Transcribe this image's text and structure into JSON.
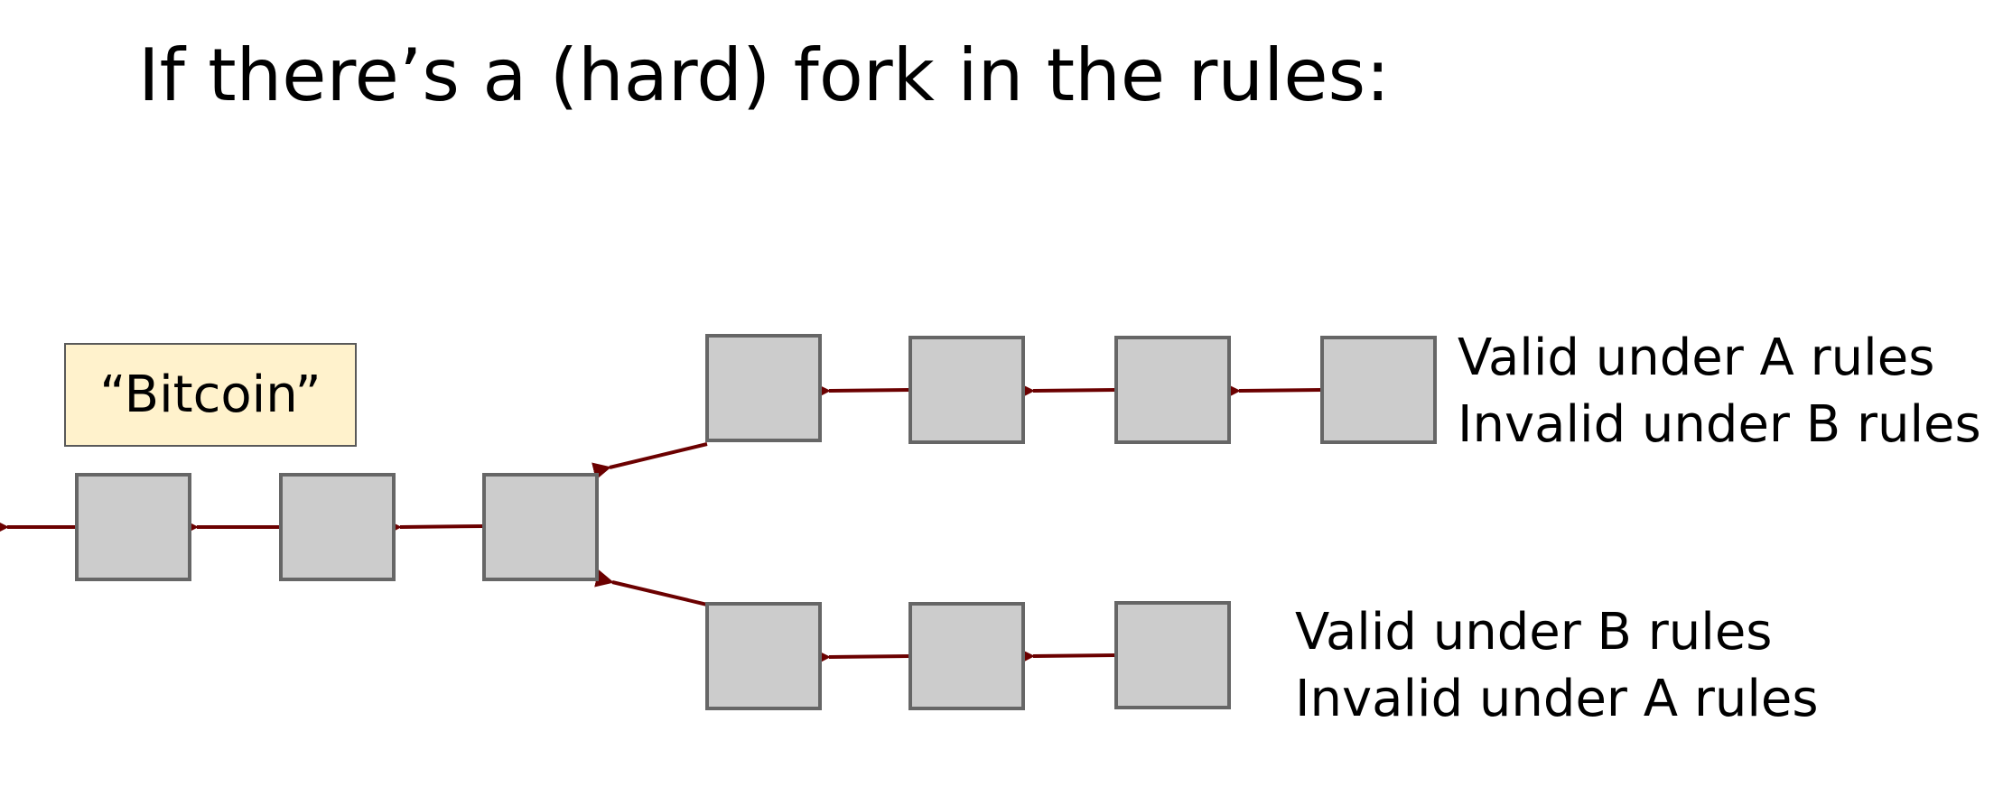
{
  "title": "If there’s a (hard) fork in the rules:",
  "callout": {
    "label": "“Bitcoin”"
  },
  "branch_a": {
    "line1": "Valid under A rules",
    "line2": "Invalid under B rules"
  },
  "branch_b": {
    "line1": "Valid under B rules",
    "line2": "Invalid under A rules"
  },
  "colors": {
    "arrow": "#6b0000",
    "block_fill": "#cccccc",
    "block_stroke": "#666666",
    "callout_fill": "#fff2cc"
  }
}
